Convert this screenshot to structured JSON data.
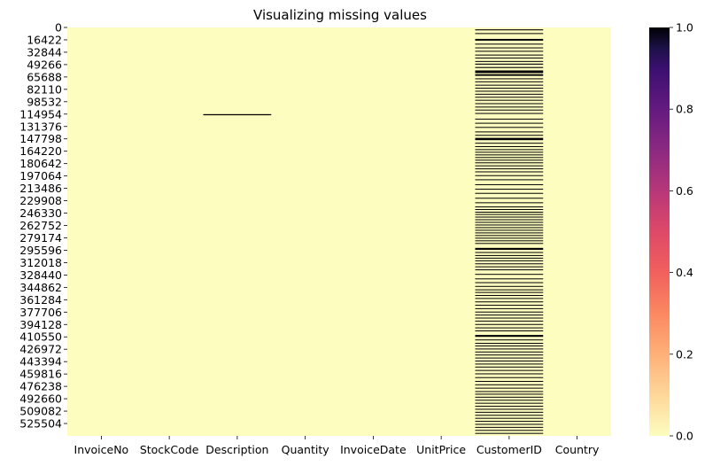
{
  "chart_data": {
    "type": "heatmap",
    "title": "Visualizing missing values",
    "xlabel": "",
    "ylabel": "",
    "columns": [
      "InvoiceNo",
      "StockCode",
      "Description",
      "Quantity",
      "InvoiceDate",
      "UnitPrice",
      "CustomerID",
      "Country"
    ],
    "y_tick_labels": [
      "0",
      "16422",
      "32844",
      "49266",
      "65688",
      "82110",
      "98532",
      "114954",
      "131376",
      "147798",
      "164220",
      "180642",
      "197064",
      "213486",
      "229908",
      "246330",
      "262752",
      "279174",
      "295596",
      "312018",
      "328440",
      "344862",
      "361284",
      "377706",
      "394128",
      "410550",
      "426972",
      "443394",
      "459816",
      "476238",
      "492660",
      "509082",
      "525504"
    ],
    "row_count": 541909,
    "ylim": [
      0,
      541909
    ],
    "colorbar": {
      "range": [
        0,
        1
      ],
      "ticks": [
        "0.0",
        "0.2",
        "0.4",
        "0.6",
        "0.8",
        "1.0"
      ],
      "colormap": "magma_r",
      "low_color": "#fcfdbf",
      "high_color": "#000004"
    },
    "missing_rows": {
      "Description": [
        [
          115000,
          116500
        ]
      ],
      "CustomerID": [
        [
          2500,
          3800
        ],
        [
          7500,
          8600
        ],
        [
          15200,
          17500
        ],
        [
          21500,
          22700
        ],
        [
          26500,
          27600
        ],
        [
          31000,
          32200
        ],
        [
          36000,
          37200
        ],
        [
          40000,
          41100
        ],
        [
          44500,
          45600
        ],
        [
          48000,
          49300
        ],
        [
          52500,
          53800
        ],
        [
          57000,
          60500
        ],
        [
          62000,
          64200
        ],
        [
          67500,
          68700
        ],
        [
          71500,
          72600
        ],
        [
          76000,
          77100
        ],
        [
          80000,
          81200
        ],
        [
          84000,
          85100
        ],
        [
          88000,
          89100
        ],
        [
          92000,
          93100
        ],
        [
          96000,
          97100
        ],
        [
          100500,
          101600
        ],
        [
          105000,
          106100
        ],
        [
          109000,
          110100
        ],
        [
          113500,
          114600
        ],
        [
          121000,
          122100
        ],
        [
          126500,
          127600
        ],
        [
          132000,
          133100
        ],
        [
          138000,
          139100
        ],
        [
          142500,
          143600
        ],
        [
          146500,
          149500
        ],
        [
          153000,
          154100
        ],
        [
          157500,
          158600
        ],
        [
          161500,
          162600
        ],
        [
          165000,
          166100
        ],
        [
          168500,
          169600
        ],
        [
          172000,
          173100
        ],
        [
          175500,
          176600
        ],
        [
          179000,
          180100
        ],
        [
          183000,
          184100
        ],
        [
          187000,
          188100
        ],
        [
          191000,
          192100
        ],
        [
          196000,
          197100
        ],
        [
          201500,
          202600
        ],
        [
          208000,
          209100
        ],
        [
          214000,
          215100
        ],
        [
          219500,
          220600
        ],
        [
          226000,
          227100
        ],
        [
          232000,
          233100
        ],
        [
          237500,
          238600
        ],
        [
          241000,
          242100
        ],
        [
          244500,
          245600
        ],
        [
          247500,
          248600
        ],
        [
          251000,
          252100
        ],
        [
          254500,
          255600
        ],
        [
          258000,
          259100
        ],
        [
          261500,
          262600
        ],
        [
          265000,
          266100
        ],
        [
          268500,
          269600
        ],
        [
          272000,
          273100
        ],
        [
          275500,
          276600
        ],
        [
          279000,
          280100
        ],
        [
          282500,
          283600
        ],
        [
          286000,
          287100
        ],
        [
          292500,
          295000
        ],
        [
          298000,
          299100
        ],
        [
          302000,
          303100
        ],
        [
          305500,
          306600
        ],
        [
          309000,
          310100
        ],
        [
          313000,
          314100
        ],
        [
          317000,
          318100
        ],
        [
          321000,
          322100
        ],
        [
          327000,
          328100
        ],
        [
          333000,
          334100
        ],
        [
          338000,
          339100
        ],
        [
          343000,
          344100
        ],
        [
          347500,
          348600
        ],
        [
          351000,
          352100
        ],
        [
          355000,
          356100
        ],
        [
          359000,
          360100
        ],
        [
          363500,
          364600
        ],
        [
          368000,
          369100
        ],
        [
          372500,
          373600
        ],
        [
          377000,
          378100
        ],
        [
          381000,
          382100
        ],
        [
          385000,
          386100
        ],
        [
          389000,
          390100
        ],
        [
          393500,
          394600
        ],
        [
          398000,
          399100
        ],
        [
          402000,
          403100
        ],
        [
          408000,
          410500
        ],
        [
          414000,
          415100
        ],
        [
          418500,
          419600
        ],
        [
          422000,
          423100
        ],
        [
          426000,
          427100
        ],
        [
          430000,
          431100
        ],
        [
          434000,
          435100
        ],
        [
          438000,
          439100
        ],
        [
          442000,
          443100
        ],
        [
          446000,
          447100
        ],
        [
          450000,
          451100
        ],
        [
          454500,
          455600
        ],
        [
          459000,
          460100
        ],
        [
          464000,
          465100
        ],
        [
          469000,
          470100
        ],
        [
          473500,
          474600
        ],
        [
          478000,
          479100
        ],
        [
          482500,
          483600
        ],
        [
          486000,
          487100
        ],
        [
          490000,
          491100
        ],
        [
          494000,
          495100
        ],
        [
          498000,
          499100
        ],
        [
          502000,
          503100
        ],
        [
          506000,
          507100
        ],
        [
          510000,
          511100
        ],
        [
          514000,
          515100
        ],
        [
          518000,
          519100
        ],
        [
          522000,
          523100
        ],
        [
          526000,
          527100
        ],
        [
          530000,
          531100
        ],
        [
          534000,
          535100
        ],
        [
          538000,
          539100
        ]
      ]
    },
    "grid": false,
    "legend": "colorbar right"
  }
}
